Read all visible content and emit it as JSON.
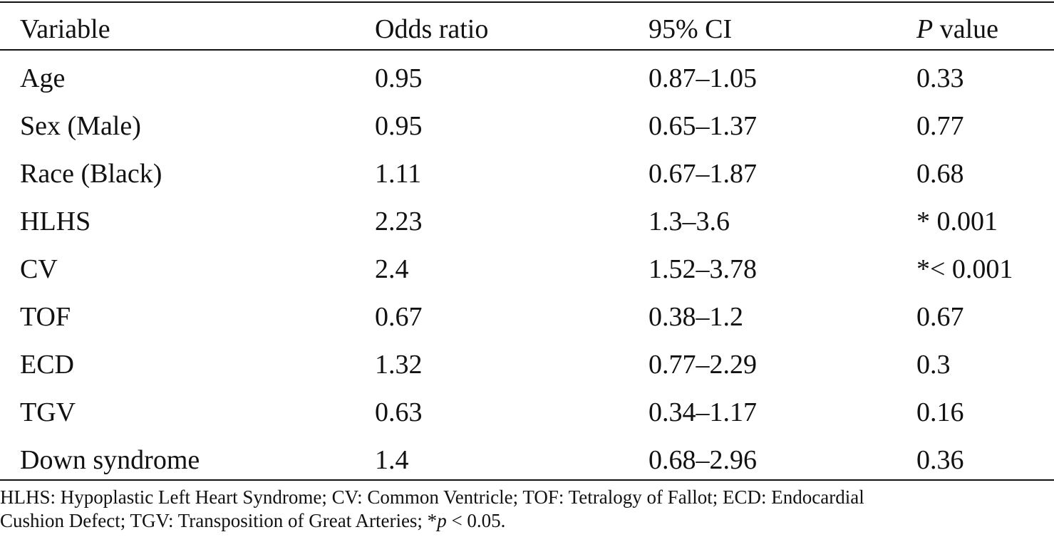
{
  "table": {
    "headers": {
      "variable": "Variable",
      "odds_ratio": "Odds ratio",
      "ci": "95% CI",
      "p_italic": "P",
      "p_rest": " value"
    },
    "rows": [
      {
        "variable": "Age",
        "odds_ratio": "0.95",
        "ci": "0.87–1.05",
        "p": "0.33"
      },
      {
        "variable": "Sex (Male)",
        "odds_ratio": "0.95",
        "ci": "0.65–1.37",
        "p": "0.77"
      },
      {
        "variable": "Race (Black)",
        "odds_ratio": "1.11",
        "ci": "0.67–1.87",
        "p": "0.68"
      },
      {
        "variable": "HLHS",
        "odds_ratio": "2.23",
        "ci": "1.3–3.6",
        "p": "* 0.001"
      },
      {
        "variable": "CV",
        "odds_ratio": "2.4",
        "ci": "1.52–3.78",
        "p": "*< 0.001"
      },
      {
        "variable": "TOF",
        "odds_ratio": "0.67",
        "ci": "0.38–1.2",
        "p": "0.67"
      },
      {
        "variable": "ECD",
        "odds_ratio": "1.32",
        "ci": "0.77–2.29",
        "p": "0.3"
      },
      {
        "variable": "TGV",
        "odds_ratio": "0.63",
        "ci": "0.34–1.17",
        "p": "0.16"
      },
      {
        "variable": "Down syndrome",
        "odds_ratio": "1.4",
        "ci": "0.68–2.96",
        "p": "0.36"
      }
    ]
  },
  "footnote": {
    "line1": "HLHS: Hypoplastic Left Heart Syndrome; CV: Common Ventricle; TOF: Tetralogy of Fallot; ECD: Endocardial",
    "line2_pre": "Cushion Defect; TGV: Transposition of Great Arteries; *",
    "line2_italic": "p",
    "line2_post": " < 0.05."
  }
}
